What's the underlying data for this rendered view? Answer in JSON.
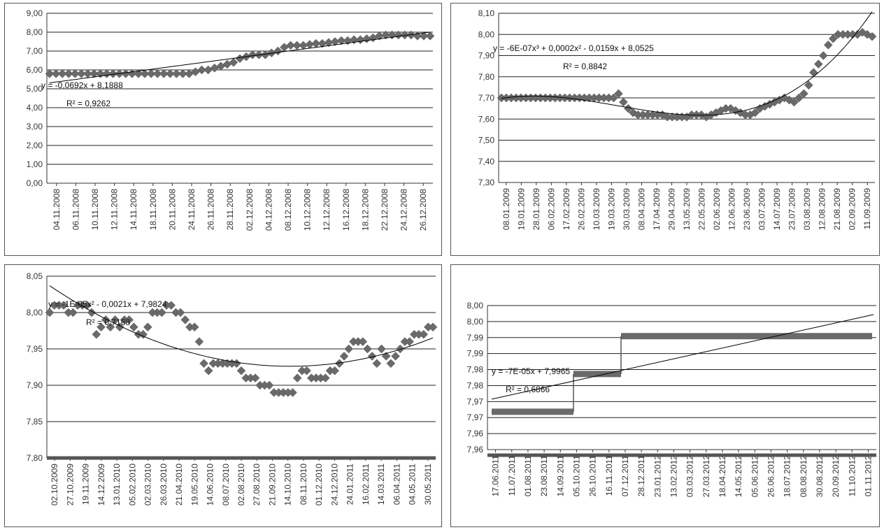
{
  "chart_data": [
    {
      "type": "scatter",
      "ylim": [
        0,
        9
      ],
      "y_ticks": [
        "0,00",
        "1,00",
        "2,00",
        "3,00",
        "4,00",
        "5,00",
        "6,00",
        "7,00",
        "8,00",
        "9,00"
      ],
      "x_ticks": [
        "04.11.2008",
        "06.11.2008",
        "10.11.2008",
        "12.11.2008",
        "14.11.2008",
        "18.11.2008",
        "20.11.2008",
        "24.11.2008",
        "26.11.2008",
        "28.11.2008",
        "02.12.2008",
        "04.12.2008",
        "08.12.2008",
        "10.12.2008",
        "12.12.2008",
        "16.12.2008",
        "18.12.2008",
        "22.12.2008",
        "24.12.2008",
        "26.12.2008"
      ],
      "series": [
        {
          "y": [
            5.8,
            5.8,
            5.8,
            5.8,
            5.8,
            5.8,
            5.8,
            5.8,
            5.8,
            5.8,
            5.8,
            5.8,
            5.8,
            5.8,
            5.8,
            5.8,
            5.8,
            5.8,
            5.8,
            5.8,
            5.8,
            5.8,
            5.8,
            5.9,
            6.0,
            6.0,
            6.1,
            6.2,
            6.3,
            6.4,
            6.6,
            6.7,
            6.8,
            6.8,
            6.8,
            6.9,
            7.0,
            7.2,
            7.3,
            7.3,
            7.3,
            7.35,
            7.4,
            7.4,
            7.45,
            7.5,
            7.55,
            7.55,
            7.6,
            7.6,
            7.65,
            7.7,
            7.8,
            7.85,
            7.85,
            7.85,
            7.85,
            7.85,
            7.8,
            7.8,
            7.8
          ]
        }
      ],
      "trendline": {
        "equation": "y = -0,0692x + 8,1888",
        "r2": "R² = 0,9262"
      },
      "grid": true
    },
    {
      "type": "scatter",
      "ylim": [
        7.3,
        8.1
      ],
      "y_ticks": [
        "7,30",
        "7,40",
        "7,50",
        "7,60",
        "7,70",
        "7,80",
        "7,90",
        "8,00",
        "8,10"
      ],
      "x_ticks": [
        "08.01.2009",
        "19.01.2009",
        "28.01.2009",
        "06.02.2009",
        "17.02.2009",
        "26.02.2009",
        "10.03.2009",
        "19.03.2009",
        "30.03.2009",
        "08.04.2009",
        "17.04.2009",
        "29.04.2009",
        "13.05.2009",
        "22.05.2009",
        "02.06.2009",
        "12.06.2009",
        "23.06.2009",
        "03.07.2009",
        "14.07.2009",
        "23.07.2009",
        "03.08.2009",
        "12.08.2009",
        "21.08.2009",
        "02.09.2009",
        "11.09.2009"
      ],
      "series": [
        {
          "y": [
            7.7,
            7.7,
            7.7,
            7.7,
            7.7,
            7.7,
            7.7,
            7.7,
            7.7,
            7.7,
            7.7,
            7.7,
            7.7,
            7.7,
            7.7,
            7.7,
            7.7,
            7.7,
            7.7,
            7.7,
            7.7,
            7.7,
            7.7,
            7.7,
            7.72,
            7.68,
            7.65,
            7.63,
            7.62,
            7.62,
            7.62,
            7.62,
            7.62,
            7.62,
            7.61,
            7.61,
            7.61,
            7.61,
            7.61,
            7.62,
            7.62,
            7.62,
            7.61,
            7.62,
            7.63,
            7.64,
            7.65,
            7.65,
            7.64,
            7.63,
            7.62,
            7.62,
            7.63,
            7.65,
            7.66,
            7.67,
            7.68,
            7.69,
            7.7,
            7.69,
            7.68,
            7.7,
            7.72,
            7.76,
            7.82,
            7.86,
            7.9,
            7.95,
            7.98,
            8.0,
            8.0,
            8.0,
            8.0,
            8.0,
            8.01,
            8.0,
            7.99
          ]
        }
      ],
      "trendline": {
        "equation": "y = -6E-07x³ + 0,0002x² - 0,0159x + 8,0525",
        "r2": "R² = 0,8842"
      },
      "grid": true
    },
    {
      "type": "scatter",
      "ylim": [
        7.8,
        8.05
      ],
      "y_ticks": [
        "7,80",
        "7,85",
        "7,90",
        "7,95",
        "8,00",
        "8,05"
      ],
      "x_ticks": [
        "02.10.2009",
        "27.10.2009",
        "19.11.2009",
        "14.12.2009",
        "13.01.2010",
        "05.02.2010",
        "02.03.2010",
        "26.03.2010",
        "21.04.2010",
        "19.05.2010",
        "14.06.2010",
        "08.07.2010",
        "02.08.2010",
        "27.08.2010",
        "21.09.2010",
        "14.10.2010",
        "08.11.2010",
        "01.12.2010",
        "24.12.2010",
        "24.01.2011",
        "16.02.2011",
        "14.03.2011",
        "06.04.2011",
        "04.05.2011",
        "30.05.2011"
      ],
      "series": [
        {
          "y": [
            8.0,
            8.01,
            8.01,
            8.01,
            8.0,
            8.0,
            8.01,
            8.01,
            8.01,
            8.0,
            7.97,
            7.98,
            7.99,
            7.98,
            7.99,
            7.98,
            7.99,
            7.99,
            7.98,
            7.97,
            7.97,
            7.98,
            8.0,
            8.0,
            8.0,
            8.01,
            8.01,
            8.0,
            8.0,
            7.99,
            7.98,
            7.98,
            7.96,
            7.93,
            7.92,
            7.93,
            7.93,
            7.93,
            7.93,
            7.93,
            7.93,
            7.92,
            7.91,
            7.91,
            7.91,
            7.9,
            7.9,
            7.9,
            7.89,
            7.89,
            7.89,
            7.89,
            7.89,
            7.91,
            7.92,
            7.92,
            7.91,
            7.91,
            7.91,
            7.91,
            7.92,
            7.92,
            7.93,
            7.94,
            7.95,
            7.96,
            7.96,
            7.96,
            7.95,
            7.94,
            7.93,
            7.95,
            7.94,
            7.93,
            7.94,
            7.95,
            7.96,
            7.96,
            7.97,
            7.97,
            7.97,
            7.98,
            7.98
          ]
        }
      ],
      "trendline": {
        "equation": "y = -1E-05x² - 0,0021x + 7,9824",
        "r2": "R² = 0,7168"
      },
      "grid": true
    },
    {
      "type": "scatter",
      "ylim": [
        7.96,
        8.0
      ],
      "y_ticks": [
        "7,96",
        "7,96",
        "7,97",
        "7,97",
        "7,98",
        "7,98",
        "7,99",
        "7,99",
        "8,00",
        "8,00"
      ],
      "x_ticks": [
        "17.06.2011",
        "11.07.2011",
        "01.08.2011",
        "23.08.2011",
        "14.09.2011",
        "05.10.2011",
        "26.10.2011",
        "16.11.2011",
        "07.12.2011",
        "28.12.2011",
        "23.01.2012",
        "13.02.2012",
        "03.03.2012",
        "27.03.2012",
        "18.04.2012",
        "14.05.2012",
        "05.06.2012",
        "26.06.2012",
        "18.07.2012",
        "08.08.2012",
        "30.08.2012",
        "20.09.2012",
        "11.10.2012",
        "01.11.2012"
      ],
      "series": [
        {
          "segments": [
            {
              "x_range": [
                0,
                0.215
              ],
              "y": 7.9705
            },
            {
              "x_range": [
                0.215,
                0.34
              ],
              "y": 7.981
            },
            {
              "x_range": [
                0.34,
                1.0
              ],
              "y": 7.9915
            }
          ]
        }
      ],
      "trendline": {
        "equation": "y = -7E-05x + 7,9965",
        "r2": "R² = 0,6866"
      },
      "grid": true
    }
  ]
}
